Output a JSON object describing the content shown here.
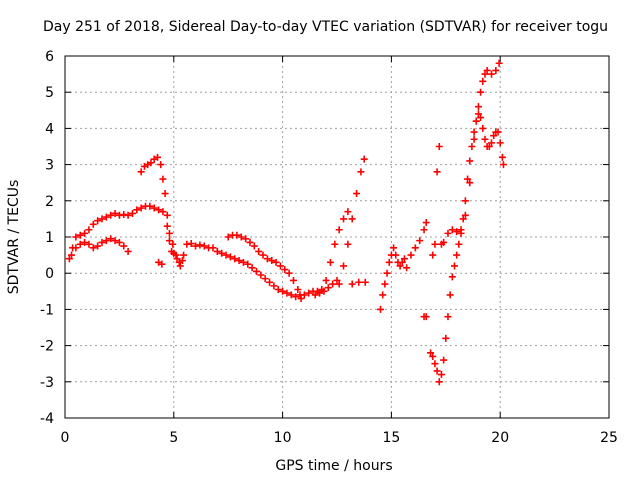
{
  "chart_data": {
    "type": "scatter",
    "title": "Day 251 of 2018, Sidereal Day-to-day VTEC variation (SDTVAR) for receiver togu",
    "xlabel": "GPS time / hours",
    "ylabel": "SDTVAR / TECUs",
    "xlim": [
      0,
      25
    ],
    "ylim": [
      -4,
      6
    ],
    "xticks": [
      0,
      5,
      10,
      15,
      20,
      25
    ],
    "yticks": [
      -4,
      -3,
      -2,
      -1,
      0,
      1,
      2,
      3,
      4,
      5,
      6
    ],
    "xtick_labels": [
      "0",
      "5",
      "10",
      "15",
      "20",
      "25"
    ],
    "ytick_labels": [
      "-4",
      "-3",
      "-2",
      "-1",
      "0",
      "1",
      "2",
      "3",
      "4",
      "5",
      "6"
    ],
    "grid": true,
    "marker": "plus",
    "color": "#ff0000",
    "series": [
      {
        "points": [
          [
            0.2,
            0.4
          ],
          [
            0.35,
            0.7
          ],
          [
            0.5,
            1.0
          ],
          [
            0.7,
            1.05
          ],
          [
            0.9,
            1.1
          ],
          [
            1.1,
            1.2
          ],
          [
            1.3,
            1.35
          ],
          [
            1.5,
            1.45
          ],
          [
            1.7,
            1.5
          ],
          [
            1.9,
            1.55
          ],
          [
            2.1,
            1.6
          ],
          [
            2.3,
            1.65
          ],
          [
            2.5,
            1.6
          ],
          [
            2.7,
            1.62
          ],
          [
            2.9,
            1.6
          ],
          [
            3.1,
            1.65
          ],
          [
            3.3,
            1.75
          ],
          [
            3.5,
            1.8
          ],
          [
            3.7,
            1.85
          ],
          [
            3.9,
            1.85
          ],
          [
            4.1,
            1.8
          ],
          [
            4.3,
            1.75
          ],
          [
            4.5,
            1.7
          ],
          [
            4.7,
            1.3
          ],
          [
            4.8,
            0.9
          ],
          [
            4.9,
            0.6
          ],
          [
            5.0,
            0.55
          ],
          [
            5.15,
            0.4
          ],
          [
            5.3,
            0.2
          ],
          [
            5.45,
            0.5
          ],
          [
            5.6,
            0.8
          ],
          [
            5.8,
            0.82
          ],
          [
            6.0,
            0.75
          ],
          [
            6.2,
            0.78
          ],
          [
            6.4,
            0.75
          ],
          [
            6.6,
            0.7
          ],
          [
            6.8,
            0.7
          ],
          [
            7.0,
            0.6
          ],
          [
            7.2,
            0.55
          ],
          [
            7.4,
            0.5
          ],
          [
            7.6,
            0.45
          ],
          [
            7.8,
            0.4
          ],
          [
            8.0,
            0.35
          ],
          [
            8.2,
            0.3
          ],
          [
            8.4,
            0.25
          ],
          [
            8.6,
            0.15
          ],
          [
            8.8,
            0.05
          ],
          [
            9.0,
            -0.05
          ],
          [
            9.2,
            -0.15
          ],
          [
            9.4,
            -0.25
          ],
          [
            9.6,
            -0.35
          ],
          [
            9.8,
            -0.45
          ],
          [
            10.0,
            -0.5
          ],
          [
            10.2,
            -0.55
          ],
          [
            10.4,
            -0.6
          ],
          [
            10.6,
            -0.65
          ],
          [
            10.8,
            -0.6
          ],
          [
            11.0,
            -0.6
          ],
          [
            11.2,
            -0.55
          ],
          [
            11.4,
            -0.5
          ],
          [
            11.6,
            -0.5
          ],
          [
            11.8,
            -0.45
          ],
          [
            12.0,
            -0.2
          ],
          [
            12.2,
            0.3
          ],
          [
            12.4,
            0.8
          ],
          [
            12.6,
            1.2
          ],
          [
            12.8,
            1.5
          ],
          [
            13.0,
            1.7
          ]
        ]
      },
      {
        "points": [
          [
            0.3,
            0.5
          ],
          [
            0.5,
            0.7
          ],
          [
            0.7,
            0.8
          ],
          [
            0.9,
            0.85
          ],
          [
            1.1,
            0.8
          ],
          [
            1.3,
            0.7
          ],
          [
            1.5,
            0.75
          ],
          [
            1.7,
            0.85
          ],
          [
            1.9,
            0.9
          ],
          [
            2.1,
            0.95
          ],
          [
            2.3,
            0.9
          ],
          [
            2.5,
            0.85
          ],
          [
            2.7,
            0.75
          ],
          [
            2.9,
            0.6
          ],
          [
            3.5,
            2.8
          ],
          [
            3.65,
            2.95
          ],
          [
            3.8,
            3.0
          ],
          [
            3.95,
            3.05
          ],
          [
            4.1,
            3.15
          ],
          [
            4.25,
            3.2
          ],
          [
            4.4,
            3.0
          ],
          [
            4.5,
            2.6
          ],
          [
            4.6,
            2.2
          ],
          [
            4.7,
            1.6
          ],
          [
            4.8,
            1.1
          ],
          [
            4.95,
            0.8
          ],
          [
            5.1,
            0.5
          ],
          [
            5.25,
            0.3
          ],
          [
            5.4,
            0.35
          ],
          [
            4.3,
            0.3
          ],
          [
            4.45,
            0.25
          ],
          [
            7.5,
            1.0
          ],
          [
            7.7,
            1.05
          ],
          [
            7.9,
            1.05
          ],
          [
            8.1,
            1.0
          ],
          [
            8.3,
            0.95
          ],
          [
            8.5,
            0.85
          ],
          [
            8.7,
            0.75
          ],
          [
            8.9,
            0.6
          ],
          [
            9.1,
            0.5
          ],
          [
            9.3,
            0.4
          ],
          [
            9.5,
            0.35
          ],
          [
            9.7,
            0.3
          ],
          [
            9.9,
            0.2
          ],
          [
            10.1,
            0.1
          ],
          [
            10.3,
            0.0
          ],
          [
            10.5,
            -0.2
          ],
          [
            10.7,
            -0.45
          ],
          [
            10.85,
            -0.7
          ],
          [
            11.5,
            -0.6
          ],
          [
            11.7,
            -0.55
          ],
          [
            11.9,
            -0.5
          ],
          [
            12.1,
            -0.4
          ],
          [
            12.3,
            -0.3
          ],
          [
            12.5,
            -0.2
          ],
          [
            12.6,
            -0.3
          ],
          [
            12.8,
            0.2
          ],
          [
            13.0,
            0.8
          ],
          [
            13.2,
            1.5
          ],
          [
            13.4,
            2.2
          ],
          [
            13.6,
            2.8
          ],
          [
            13.75,
            3.15
          ],
          [
            13.2,
            -0.3
          ],
          [
            13.5,
            -0.25
          ],
          [
            13.8,
            -0.25
          ],
          [
            14.5,
            -1.0
          ],
          [
            14.6,
            -0.6
          ],
          [
            14.7,
            -0.3
          ],
          [
            14.8,
            0.0
          ],
          [
            14.9,
            0.3
          ],
          [
            15.0,
            0.5
          ],
          [
            15.1,
            0.7
          ],
          [
            15.2,
            0.5
          ],
          [
            15.3,
            0.3
          ],
          [
            15.4,
            0.2
          ],
          [
            15.5,
            0.3
          ],
          [
            15.6,
            0.4
          ],
          [
            15.7,
            0.15
          ],
          [
            15.9,
            0.5
          ],
          [
            16.1,
            0.7
          ],
          [
            16.3,
            0.9
          ],
          [
            16.5,
            1.2
          ],
          [
            16.6,
            1.4
          ],
          [
            16.5,
            -1.2
          ],
          [
            16.6,
            -1.2
          ],
          [
            16.8,
            -2.2
          ],
          [
            16.9,
            -2.3
          ],
          [
            17.0,
            -2.5
          ],
          [
            17.1,
            -2.7
          ],
          [
            17.2,
            -3.0
          ],
          [
            17.3,
            -2.8
          ],
          [
            17.4,
            -2.4
          ],
          [
            17.5,
            -1.8
          ],
          [
            17.6,
            -1.2
          ],
          [
            17.7,
            -0.6
          ],
          [
            17.8,
            -0.1
          ],
          [
            17.9,
            0.2
          ],
          [
            18.0,
            0.5
          ],
          [
            18.1,
            0.8
          ],
          [
            18.2,
            1.1
          ],
          [
            18.3,
            1.5
          ],
          [
            18.4,
            2.0
          ],
          [
            18.5,
            2.6
          ],
          [
            18.6,
            3.1
          ],
          [
            18.7,
            3.5
          ],
          [
            18.8,
            3.9
          ],
          [
            18.9,
            4.2
          ],
          [
            19.0,
            4.4
          ],
          [
            19.1,
            4.3
          ],
          [
            19.2,
            4.0
          ],
          [
            19.3,
            3.7
          ],
          [
            19.4,
            3.5
          ],
          [
            19.5,
            3.5
          ],
          [
            19.6,
            3.6
          ],
          [
            19.7,
            3.8
          ],
          [
            19.8,
            3.9
          ],
          [
            19.9,
            3.9
          ],
          [
            20.0,
            3.6
          ],
          [
            20.1,
            3.2
          ],
          [
            20.15,
            3.0
          ],
          [
            16.9,
            0.5
          ],
          [
            17.0,
            0.8
          ],
          [
            17.1,
            2.8
          ],
          [
            17.2,
            3.5
          ],
          [
            17.3,
            0.8
          ],
          [
            17.4,
            0.85
          ],
          [
            17.6,
            1.1
          ],
          [
            17.8,
            1.2
          ],
          [
            18.0,
            1.15
          ],
          [
            18.2,
            1.2
          ],
          [
            18.4,
            1.6
          ],
          [
            18.6,
            2.5
          ],
          [
            18.8,
            3.7
          ],
          [
            18.9,
            4.2
          ],
          [
            19.0,
            4.6
          ],
          [
            19.1,
            5.0
          ],
          [
            19.2,
            5.3
          ],
          [
            19.3,
            5.5
          ],
          [
            19.4,
            5.6
          ],
          [
            19.6,
            5.5
          ],
          [
            19.8,
            5.6
          ],
          [
            19.95,
            5.8
          ]
        ]
      }
    ]
  }
}
